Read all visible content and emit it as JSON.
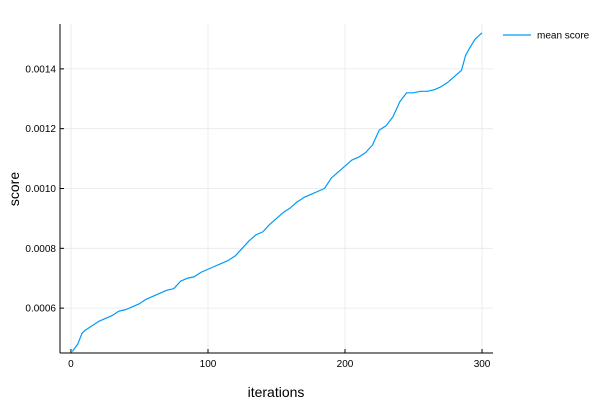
{
  "chart_data": {
    "type": "line",
    "title": "",
    "xlabel": "iterations",
    "ylabel": "score",
    "xlim": [
      -8,
      308
    ],
    "ylim": [
      0.00045,
      0.00155
    ],
    "x_ticks": [
      0,
      100,
      200,
      300
    ],
    "x_tick_labels": [
      "0",
      "100",
      "200",
      "300"
    ],
    "y_ticks": [
      0.0006,
      0.0008,
      0.001,
      0.0012,
      0.0014
    ],
    "y_tick_labels": [
      "0.0006",
      "0.0008",
      "0.0010",
      "0.0012",
      "0.0014"
    ],
    "grid": true,
    "legend": "top-right",
    "colors": {
      "series": "#009AFA",
      "grid": "#e8e8e8",
      "axis": "#000000"
    },
    "series": [
      {
        "name": "mean score",
        "x": [
          1,
          5,
          8,
          10,
          15,
          20,
          25,
          30,
          35,
          40,
          45,
          50,
          55,
          60,
          65,
          70,
          75,
          80,
          85,
          90,
          95,
          100,
          105,
          110,
          115,
          120,
          125,
          130,
          135,
          140,
          145,
          150,
          155,
          160,
          165,
          170,
          175,
          180,
          185,
          190,
          195,
          200,
          205,
          210,
          215,
          220,
          225,
          230,
          235,
          240,
          245,
          250,
          255,
          260,
          265,
          270,
          275,
          280,
          285,
          288,
          291,
          295,
          300
        ],
        "values": [
          0.000455,
          0.00048,
          0.000515,
          0.000525,
          0.00054,
          0.000555,
          0.000565,
          0.000575,
          0.00059,
          0.000595,
          0.000605,
          0.000615,
          0.00063,
          0.00064,
          0.00065,
          0.00066,
          0.000665,
          0.00069,
          0.0007,
          0.000705,
          0.00072,
          0.00073,
          0.00074,
          0.00075,
          0.00076,
          0.000775,
          0.0008,
          0.000825,
          0.000845,
          0.000855,
          0.00088,
          0.0009,
          0.00092,
          0.000935,
          0.000955,
          0.00097,
          0.00098,
          0.00099,
          0.001,
          0.001035,
          0.001055,
          0.001075,
          0.001095,
          0.001105,
          0.00112,
          0.001145,
          0.001195,
          0.00121,
          0.00124,
          0.00129,
          0.00132,
          0.00132,
          0.001325,
          0.001325,
          0.00133,
          0.00134,
          0.001355,
          0.001375,
          0.001395,
          0.001445,
          0.00147,
          0.0015,
          0.00152
        ]
      }
    ]
  }
}
